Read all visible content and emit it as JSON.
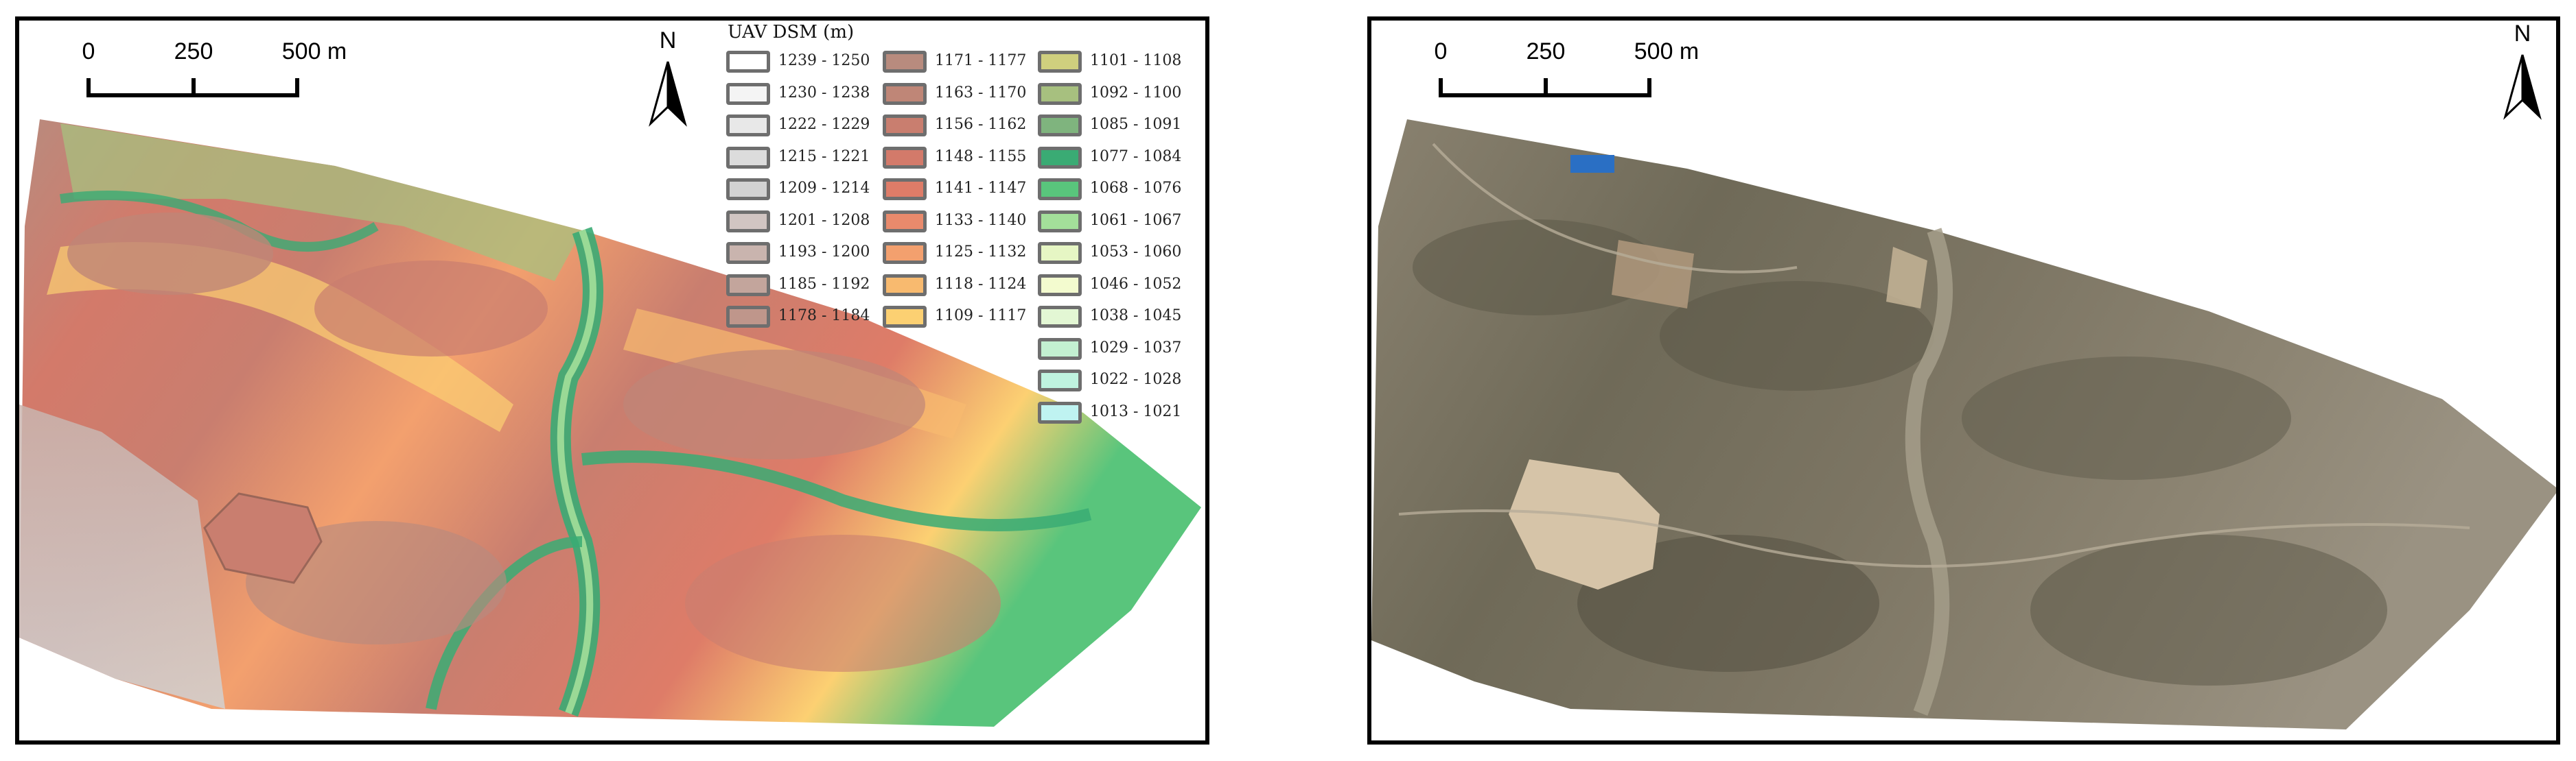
{
  "left_panel": {
    "scale": {
      "labels": [
        "0",
        "250",
        "500 m"
      ]
    },
    "north": "N",
    "legend": {
      "title": "UAV DSM (m)",
      "items": [
        {
          "range": "1239 - 1250",
          "color": "#ffffff"
        },
        {
          "range": "1230 - 1238",
          "color": "#f4f4f4"
        },
        {
          "range": "1222 - 1229",
          "color": "#e8e8e8"
        },
        {
          "range": "1215 - 1221",
          "color": "#dcdcdc"
        },
        {
          "range": "1209 - 1214",
          "color": "#d2d2d2"
        },
        {
          "range": "1201 - 1208",
          "color": "#d1c5c2"
        },
        {
          "range": "1193 - 1200",
          "color": "#c9b4ae"
        },
        {
          "range": "1185 - 1192",
          "color": "#c3a59c"
        },
        {
          "range": "1178 - 1184",
          "color": "#bf968b"
        },
        {
          "range": "1171 - 1177",
          "color": "#b88b7e"
        },
        {
          "range": "1163 - 1170",
          "color": "#bf8677"
        },
        {
          "range": "1156 - 1162",
          "color": "#c97e6f"
        },
        {
          "range": "1148 - 1155",
          "color": "#d37a6a"
        },
        {
          "range": "1141 - 1147",
          "color": "#de7c68"
        },
        {
          "range": "1133 - 1140",
          "color": "#e98a6c"
        },
        {
          "range": "1125 - 1132",
          "color": "#f3a06e"
        },
        {
          "range": "1118 - 1124",
          "color": "#f8ba6f"
        },
        {
          "range": "1109 - 1117",
          "color": "#fcd072"
        },
        {
          "range": "1101 - 1108",
          "color": "#cfcf7e"
        },
        {
          "range": "1092 - 1100",
          "color": "#a7c07f"
        },
        {
          "range": "1085 - 1091",
          "color": "#7fb47e"
        },
        {
          "range": "1077 - 1084",
          "color": "#3aab74"
        },
        {
          "range": "1068 - 1076",
          "color": "#59c57c"
        },
        {
          "range": "1061 - 1067",
          "color": "#a3df9a"
        },
        {
          "range": "1053 - 1060",
          "color": "#e6f6c4"
        },
        {
          "range": "1046 - 1052",
          "color": "#f3fbcf"
        },
        {
          "range": "1038 - 1045",
          "color": "#e3f7d4"
        },
        {
          "range": "1029 - 1037",
          "color": "#c3f0d1"
        },
        {
          "range": "1022 - 1028",
          "color": "#bff3df"
        },
        {
          "range": "1013 - 1021",
          "color": "#bff3f1"
        }
      ]
    }
  },
  "right_panel": {
    "scale": {
      "labels": [
        "0",
        "250",
        "500 m"
      ]
    },
    "north": "N"
  }
}
